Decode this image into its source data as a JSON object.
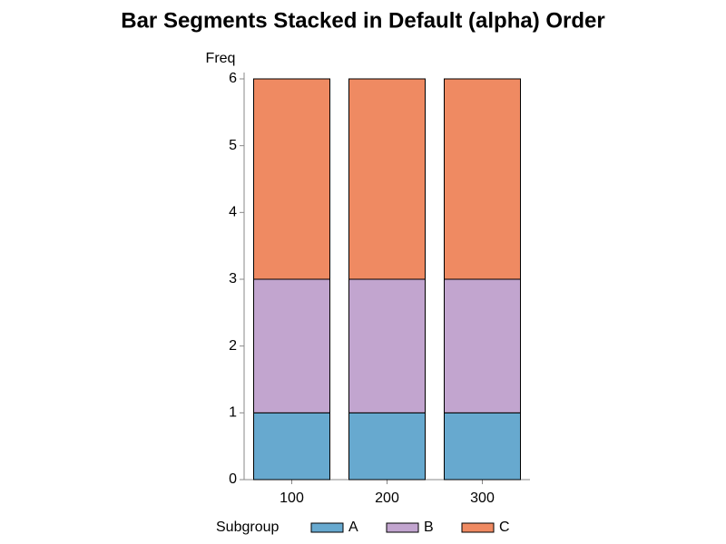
{
  "chart_data": {
    "type": "stacked_bar",
    "title": "Bar Segments Stacked in Default (alpha) Order",
    "y_label": "Freq",
    "legend_title": "Subgroup",
    "categories": [
      "100",
      "200",
      "300"
    ],
    "series": [
      {
        "name": "A",
        "color": "#67a9cf",
        "values": [
          1,
          1,
          1
        ]
      },
      {
        "name": "B",
        "color": "#c2a5cf",
        "values": [
          2,
          2,
          2
        ]
      },
      {
        "name": "C",
        "color": "#ef8a62",
        "values": [
          3,
          3,
          3
        ]
      }
    ],
    "ylim": [
      0,
      6
    ],
    "yticks": [
      0,
      1,
      2,
      3,
      4,
      5,
      6
    ],
    "grid": false,
    "legend": "bottom"
  }
}
